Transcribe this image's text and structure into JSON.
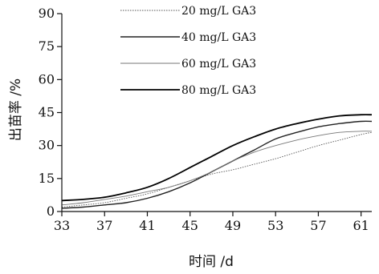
{
  "chart_data": {
    "type": "line",
    "xlabel": "时间 /d",
    "ylabel": "出苗率 /%",
    "xlim": [
      33,
      62
    ],
    "ylim": [
      0,
      90
    ],
    "x_ticks": [
      "33",
      "37",
      "41",
      "45",
      "49",
      "53",
      "57",
      "61"
    ],
    "y_ticks": [
      "0",
      "15",
      "30",
      "45",
      "60",
      "75",
      "90"
    ],
    "grid": false,
    "legend": "top-left",
    "series": [
      {
        "name": "20 mg/L GA3",
        "color": "#555555",
        "width": 0.9,
        "dash": "1.5 1.5",
        "x": [
          33,
          35,
          37,
          39,
          41,
          43,
          45,
          47,
          49,
          51,
          53,
          55,
          57,
          59,
          61,
          62
        ],
        "y": [
          2,
          3,
          4,
          6,
          8,
          11,
          14,
          17,
          19,
          21.5,
          24,
          27,
          30,
          32.5,
          35,
          36
        ]
      },
      {
        "name": "40 mg/L GA3",
        "color": "#222222",
        "width": 1.4,
        "dash": "",
        "x": [
          33,
          35,
          37,
          39,
          41,
          43,
          45,
          47,
          49,
          51,
          53,
          55,
          57,
          59,
          61,
          62
        ],
        "y": [
          1.5,
          2,
          3,
          4,
          6,
          9,
          13,
          18,
          23,
          28,
          33,
          36,
          38.5,
          40,
          41,
          41
        ]
      },
      {
        "name": "60 mg/L GA3",
        "color": "#777777",
        "width": 0.9,
        "dash": "",
        "x": [
          33,
          35,
          37,
          39,
          41,
          43,
          45,
          47,
          49,
          51,
          53,
          55,
          57,
          59,
          61,
          62
        ],
        "y": [
          3,
          4,
          5.5,
          7,
          9,
          11,
          14,
          18,
          23,
          27,
          30,
          32.5,
          34.5,
          36,
          36.5,
          36.5
        ]
      },
      {
        "name": "80 mg/L GA3",
        "color": "#000000",
        "width": 1.8,
        "dash": "",
        "x": [
          33,
          35,
          37,
          39,
          41,
          43,
          45,
          47,
          49,
          51,
          53,
          55,
          57,
          59,
          61,
          62
        ],
        "y": [
          5,
          5.5,
          6.5,
          8.5,
          11,
          15,
          20,
          25,
          30,
          34,
          37.5,
          40,
          42,
          43.5,
          44,
          44
        ]
      }
    ]
  }
}
